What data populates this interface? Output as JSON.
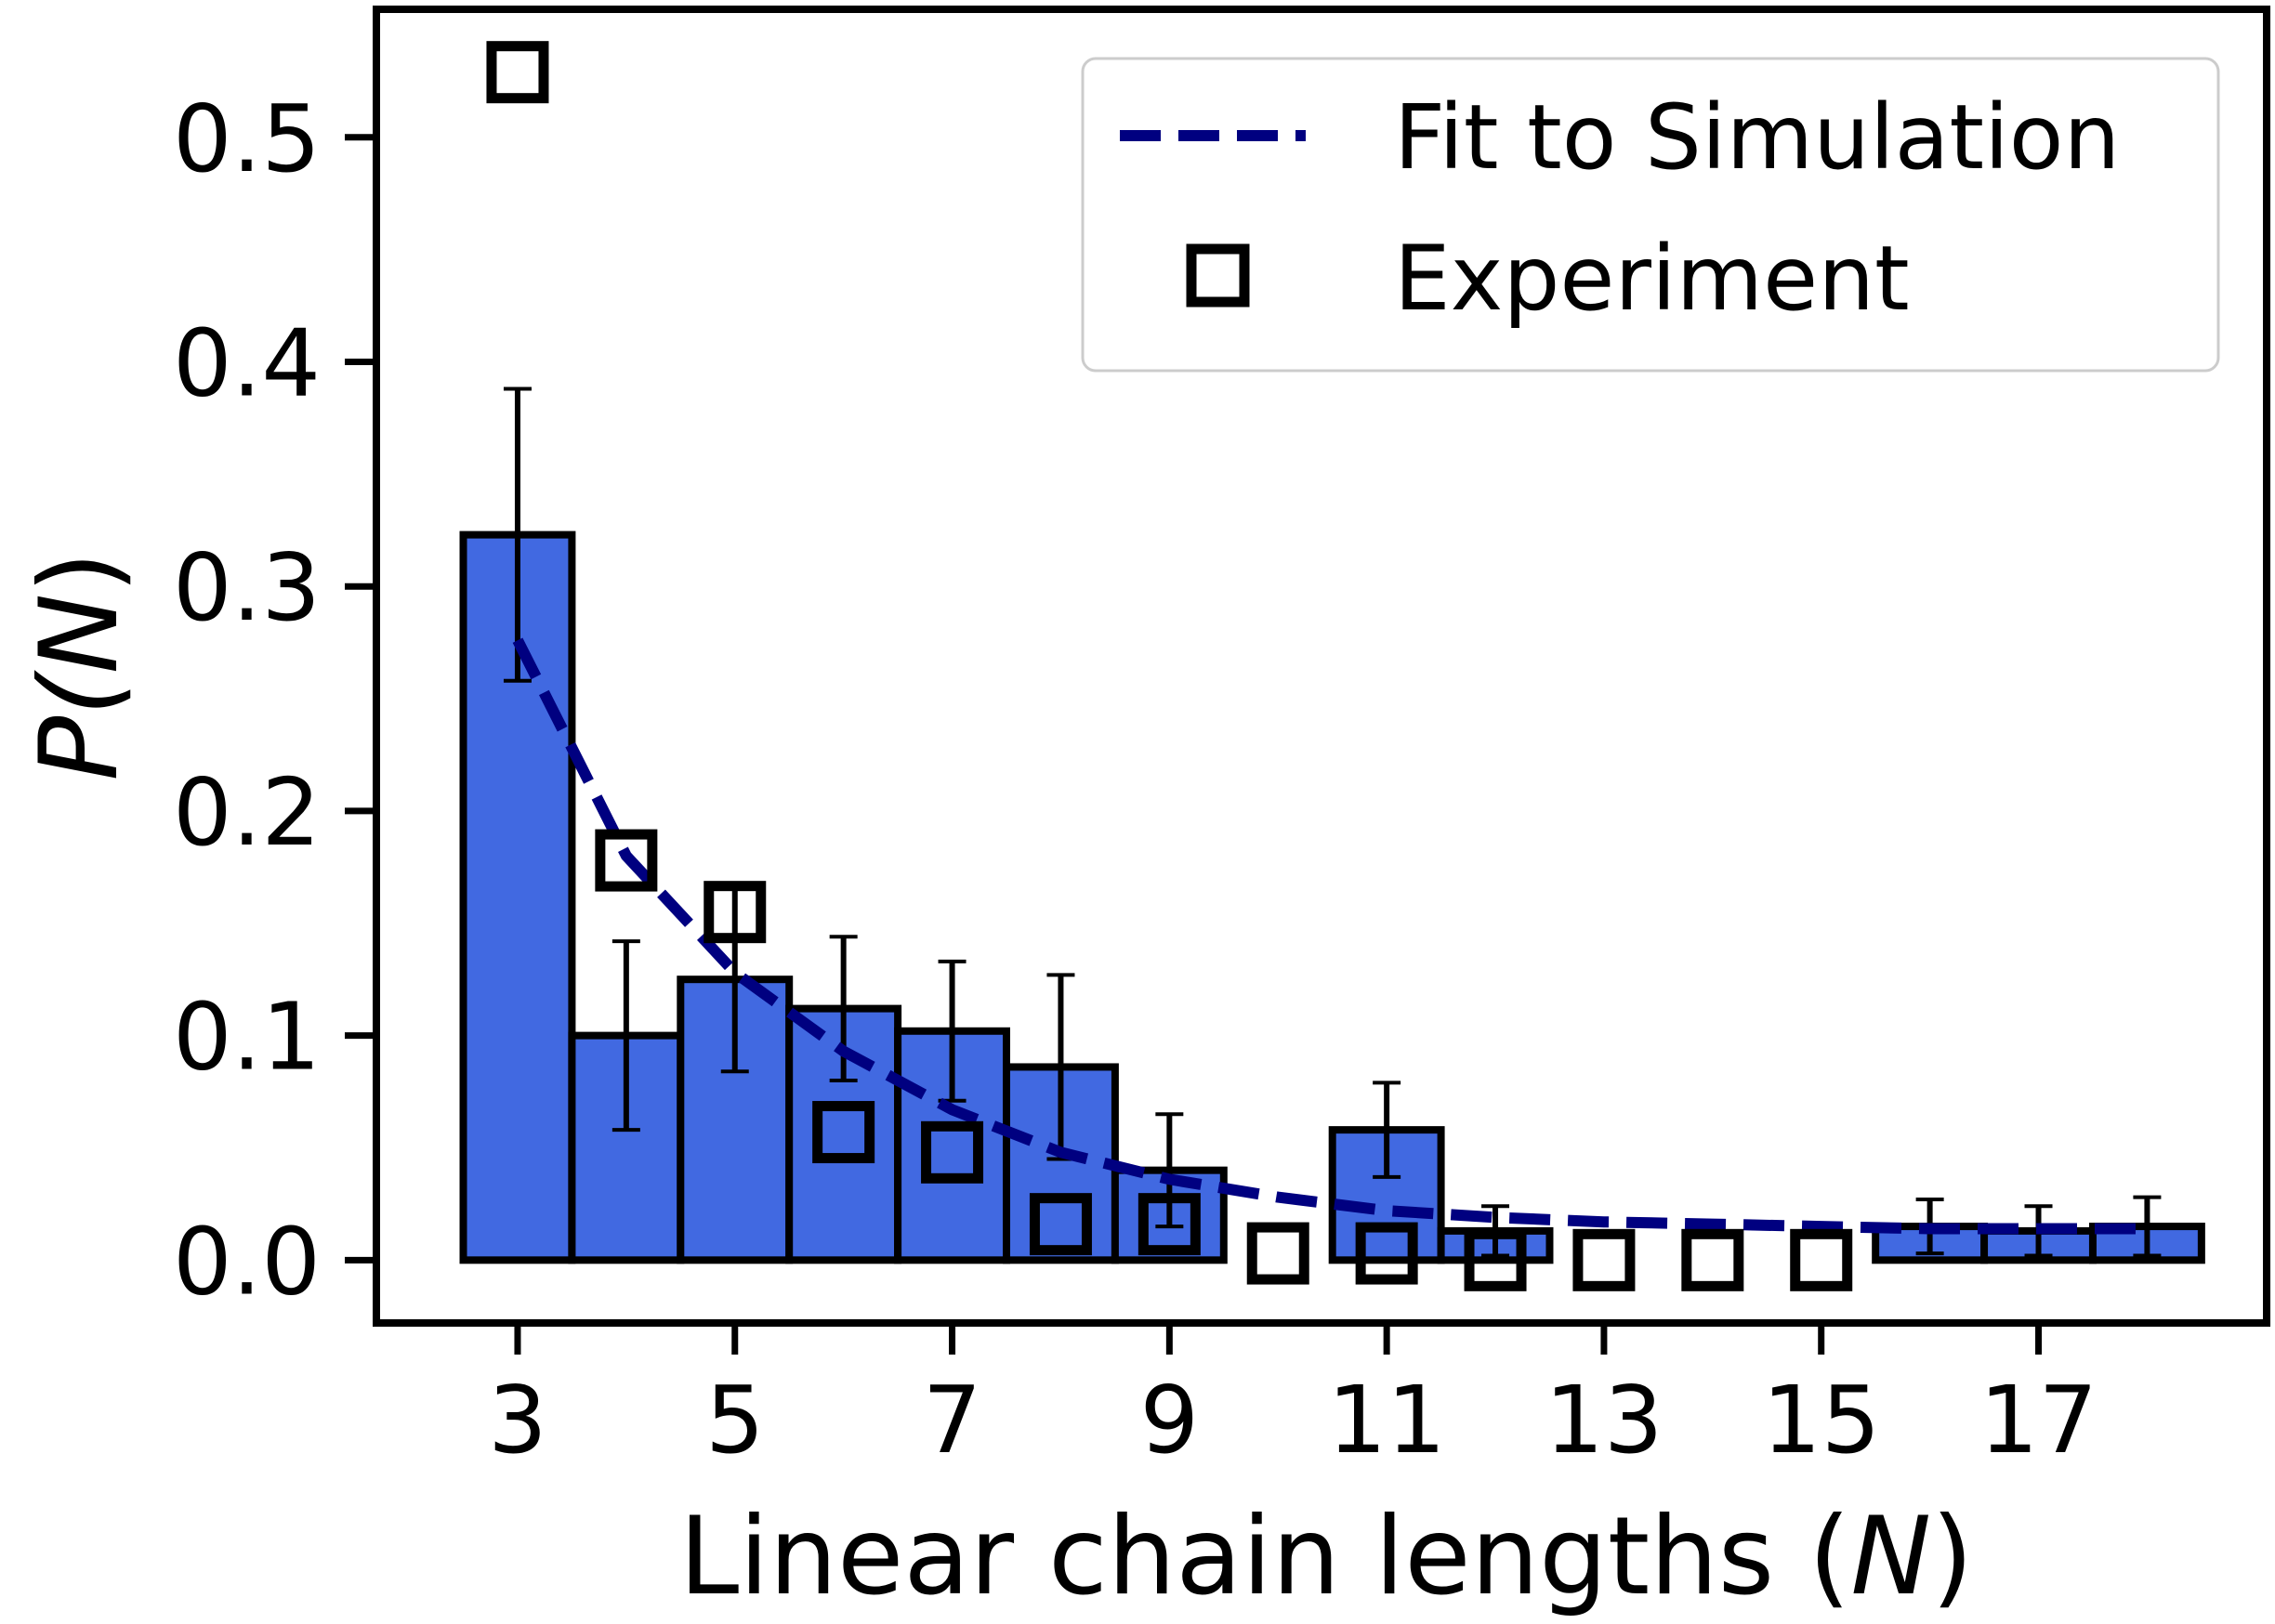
{
  "chart_data": {
    "type": "bar",
    "xlabel_prefix": "Linear chain lengths (",
    "xlabel_var": "N",
    "xlabel_suffix": ")",
    "ylabel_prefix": "P(",
    "ylabel_var": "N",
    "ylabel_suffix": ")",
    "xlim": [
      1.7,
      19.1
    ],
    "ylim": [
      -0.028,
      0.557
    ],
    "xticks": [
      3,
      5,
      7,
      9,
      11,
      13,
      15,
      17
    ],
    "yticks": [
      0.0,
      0.1,
      0.2,
      0.3,
      0.4,
      0.5
    ],
    "ytick_labels": [
      "0.0",
      "0.1",
      "0.2",
      "0.3",
      "0.4",
      "0.5"
    ],
    "grid": false,
    "legend_position": "top-right",
    "series": [
      {
        "name": "Simulation",
        "kind": "bar",
        "color": "#4169E1",
        "x": [
          3,
          4,
          5,
          6,
          7,
          8,
          9,
          10,
          11,
          12,
          13,
          14,
          15,
          16,
          17,
          18
        ],
        "values": [
          0.323,
          0.1,
          0.125,
          0.112,
          0.102,
          0.086,
          0.04,
          0.0,
          0.058,
          0.013,
          0.0,
          0.0,
          0.0,
          0.015,
          0.013,
          0.015
        ],
        "err": [
          0.065,
          0.042,
          0.041,
          0.032,
          0.031,
          0.041,
          0.025,
          0.0,
          0.021,
          0.011,
          0.0,
          0.0,
          0.0,
          0.012,
          0.011,
          0.013
        ]
      },
      {
        "name": "Fit to Simulation",
        "kind": "line",
        "style": "dashed",
        "color": "#000080",
        "x": [
          3,
          4,
          5,
          6,
          7,
          8,
          9,
          10,
          11,
          12,
          13,
          14,
          15,
          16,
          17,
          18
        ],
        "values": [
          0.276,
          0.18,
          0.128,
          0.093,
          0.067,
          0.048,
          0.036,
          0.028,
          0.022,
          0.019,
          0.017,
          0.016,
          0.015,
          0.014,
          0.014,
          0.014
        ]
      },
      {
        "name": "Experiment",
        "kind": "scatter",
        "marker": "square",
        "color": "#000000",
        "x": [
          3,
          4,
          5,
          6,
          7,
          8,
          9,
          10,
          11,
          12,
          13,
          14,
          15
        ],
        "values": [
          0.529,
          0.178,
          0.155,
          0.057,
          0.048,
          0.016,
          0.016,
          0.003,
          0.003,
          0.0,
          0.0,
          0.0,
          0.0
        ]
      }
    ]
  }
}
